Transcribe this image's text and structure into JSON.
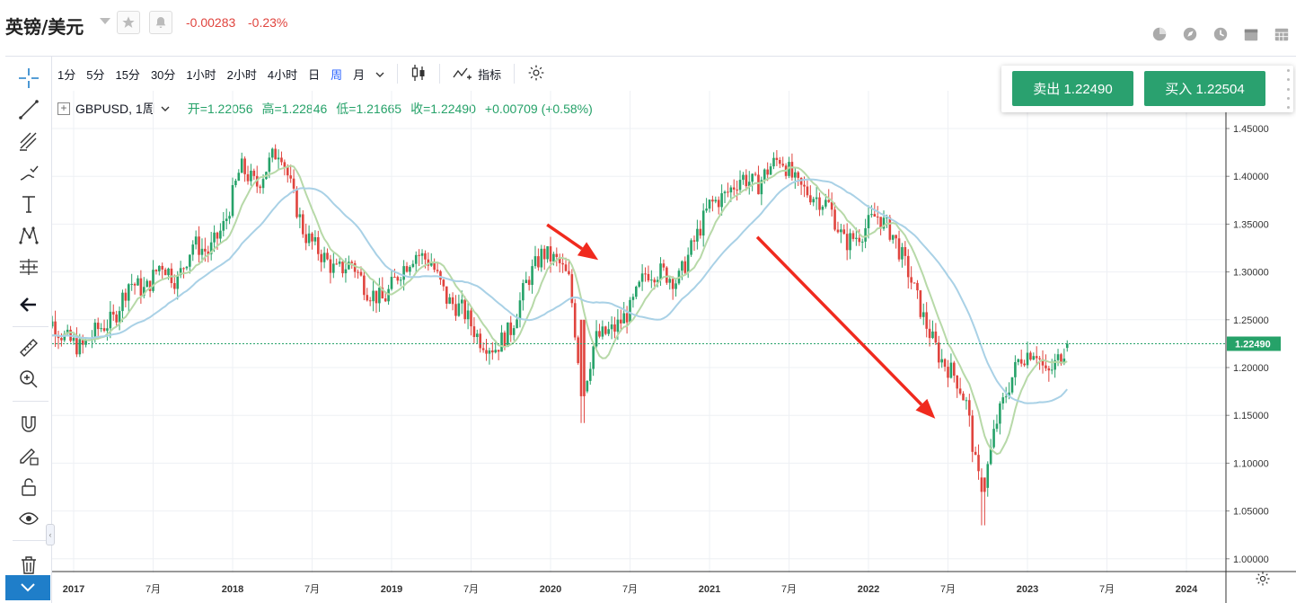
{
  "header": {
    "title": "英镑/美元",
    "change_abs": "-0.00283",
    "change_pct": "-0.23%",
    "right_icons": [
      "pie-chart-icon",
      "compass-icon",
      "clock-icon",
      "calendar-icon",
      "calendar-grid-icon"
    ]
  },
  "toolbar": {
    "timeframes": [
      "1分",
      "5分",
      "15分",
      "30分",
      "1小时",
      "2小时",
      "4小时",
      "日",
      "周",
      "月"
    ],
    "active_timeframe": "周",
    "indicators_label": "指标"
  },
  "legend": {
    "symbol": "GBPUSD, 1周",
    "open": "开=1.22056",
    "high": "高=1.22846",
    "low": "低=1.21665",
    "close": "收=1.22490",
    "change": "+0.00709 (+0.58%)"
  },
  "trade": {
    "sell_label": "卖出 1.22490",
    "buy_label": "买入 1.22504"
  },
  "left_tools": [
    "crosshair-icon",
    "trendline-icon",
    "fib-icon",
    "brush-icon",
    "text-icon",
    "pattern-icon",
    "prediction-icon",
    "back-arrow-icon",
    "ruler-icon",
    "zoom-in-icon",
    "magnet-icon",
    "lock-pencil-icon",
    "unlock-icon",
    "eye-icon",
    "trash-icon"
  ],
  "colors": {
    "up": "#26a269",
    "down": "#e0443e",
    "ma_fast": "#b7d9a8",
    "ma_slow": "#a9d1e6",
    "price_line": "#26a269",
    "arrow": "#f02a1e"
  },
  "chart_data": {
    "type": "candlestick",
    "symbol": "GBPUSD",
    "interval": "1周",
    "ylim": [
      0.985,
      1.465
    ],
    "price_ticks": [
      "1.45000",
      "1.40000",
      "1.35000",
      "1.30000",
      "1.25000",
      "1.20000",
      "1.15000",
      "1.10000",
      "1.05000",
      "1.00000"
    ],
    "x_labels": [
      "2017",
      "7月",
      "2018",
      "7月",
      "2019",
      "7月",
      "2020",
      "7月",
      "2021",
      "7月",
      "2022",
      "7月",
      "2023",
      "7月",
      "2024"
    ],
    "x_label_years": [
      2017.0,
      2017.5,
      2018.0,
      2018.5,
      2019.0,
      2019.5,
      2020.0,
      2020.5,
      2021.0,
      2021.5,
      2022.0,
      2022.5,
      2023.0,
      2023.5,
      2024.0
    ],
    "last_price": "1.22490",
    "price_path": [
      [
        2016.75,
        1.22
      ],
      [
        2016.85,
        1.25
      ],
      [
        2016.95,
        1.23
      ],
      [
        2017.05,
        1.22
      ],
      [
        2017.15,
        1.24
      ],
      [
        2017.25,
        1.25
      ],
      [
        2017.35,
        1.29
      ],
      [
        2017.45,
        1.28
      ],
      [
        2017.55,
        1.31
      ],
      [
        2017.65,
        1.29
      ],
      [
        2017.75,
        1.33
      ],
      [
        2017.85,
        1.32
      ],
      [
        2017.95,
        1.35
      ],
      [
        2018.05,
        1.41
      ],
      [
        2018.15,
        1.39
      ],
      [
        2018.25,
        1.42
      ],
      [
        2018.3,
        1.43
      ],
      [
        2018.38,
        1.38
      ],
      [
        2018.45,
        1.34
      ],
      [
        2018.55,
        1.32
      ],
      [
        2018.65,
        1.3
      ],
      [
        2018.75,
        1.31
      ],
      [
        2018.85,
        1.28
      ],
      [
        2018.95,
        1.27
      ],
      [
        2019.05,
        1.3
      ],
      [
        2019.15,
        1.32
      ],
      [
        2019.25,
        1.31
      ],
      [
        2019.35,
        1.27
      ],
      [
        2019.45,
        1.26
      ],
      [
        2019.55,
        1.23
      ],
      [
        2019.65,
        1.22
      ],
      [
        2019.75,
        1.24
      ],
      [
        2019.85,
        1.29
      ],
      [
        2019.95,
        1.32
      ],
      [
        2020.05,
        1.31
      ],
      [
        2020.12,
        1.29
      ],
      [
        2020.2,
        1.17
      ],
      [
        2020.28,
        1.23
      ],
      [
        2020.4,
        1.24
      ],
      [
        2020.5,
        1.26
      ],
      [
        2020.6,
        1.3
      ],
      [
        2020.7,
        1.3
      ],
      [
        2020.8,
        1.29
      ],
      [
        2020.9,
        1.33
      ],
      [
        2021.0,
        1.37
      ],
      [
        2021.1,
        1.38
      ],
      [
        2021.2,
        1.4
      ],
      [
        2021.3,
        1.39
      ],
      [
        2021.38,
        1.41
      ],
      [
        2021.45,
        1.42
      ],
      [
        2021.55,
        1.39
      ],
      [
        2021.65,
        1.38
      ],
      [
        2021.75,
        1.37
      ],
      [
        2021.85,
        1.33
      ],
      [
        2021.95,
        1.34
      ],
      [
        2022.05,
        1.36
      ],
      [
        2022.15,
        1.34
      ],
      [
        2022.25,
        1.3
      ],
      [
        2022.35,
        1.25
      ],
      [
        2022.45,
        1.21
      ],
      [
        2022.55,
        1.19
      ],
      [
        2022.62,
        1.16
      ],
      [
        2022.68,
        1.09
      ],
      [
        2022.72,
        1.07
      ],
      [
        2022.8,
        1.14
      ],
      [
        2022.88,
        1.18
      ],
      [
        2022.95,
        1.21
      ],
      [
        2023.05,
        1.22
      ],
      [
        2023.12,
        1.19
      ],
      [
        2023.2,
        1.21
      ],
      [
        2023.25,
        1.225
      ]
    ],
    "annotations": [
      {
        "type": "arrow",
        "from": [
          2019.9785,
          1.3494
        ],
        "to": [
          2020.3,
          1.3125
        ]
      },
      {
        "type": "arrow",
        "from": [
          2021.3,
          1.3365
        ],
        "to": [
          2022.42,
          1.1465
        ]
      }
    ]
  }
}
